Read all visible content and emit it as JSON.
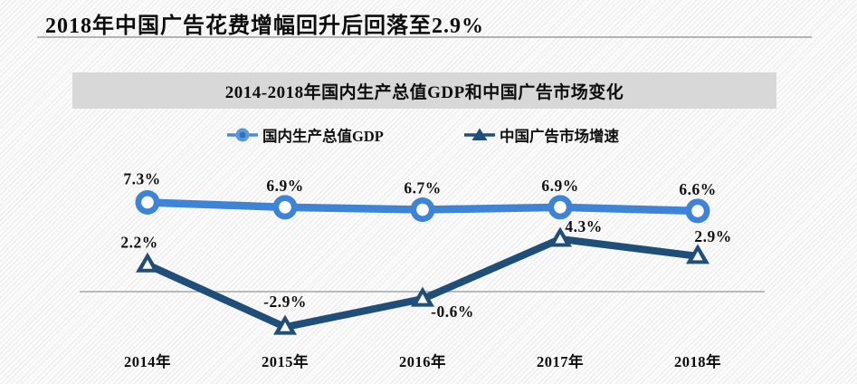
{
  "page": {
    "title": "2018年中国广告花费增幅回升后回落至2.9%"
  },
  "chart": {
    "header": "2014-2018年国内生产总值GDP和中国广告市场变化",
    "legend": [
      {
        "label": "国内生产总值GDP",
        "color": "#3d83d6",
        "marker": "circle"
      },
      {
        "label": "中国广告市场增速",
        "color": "#1f4e79",
        "marker": "triangle"
      }
    ]
  },
  "chart_data": {
    "type": "line",
    "title": "2014-2018年国内生产总值GDP和中国广告市场变化",
    "categories": [
      "2014年",
      "2015年",
      "2016年",
      "2017年",
      "2018年"
    ],
    "series": [
      {
        "name": "国内生产总值GDP",
        "values": [
          7.3,
          6.9,
          6.7,
          6.9,
          6.6
        ],
        "labels": [
          "7.3%",
          "6.9%",
          "6.7%",
          "6.9%",
          "6.6%"
        ],
        "color": "#3d83d6",
        "marker": "circle"
      },
      {
        "name": "中国广告市场增速",
        "values": [
          2.2,
          -2.9,
          -0.6,
          4.3,
          2.9
        ],
        "labels": [
          "2.2%",
          "-2.9%",
          "-0.6%",
          "4.3%",
          "2.9%"
        ],
        "color": "#1f4e79",
        "marker": "triangle"
      }
    ],
    "baseline": 0,
    "ylim": [
      -4.5,
      9
    ],
    "grid": "zero-line-only",
    "legend_position": "top",
    "zero_line_color": "#a6a6a6",
    "label_color": "#111111"
  }
}
